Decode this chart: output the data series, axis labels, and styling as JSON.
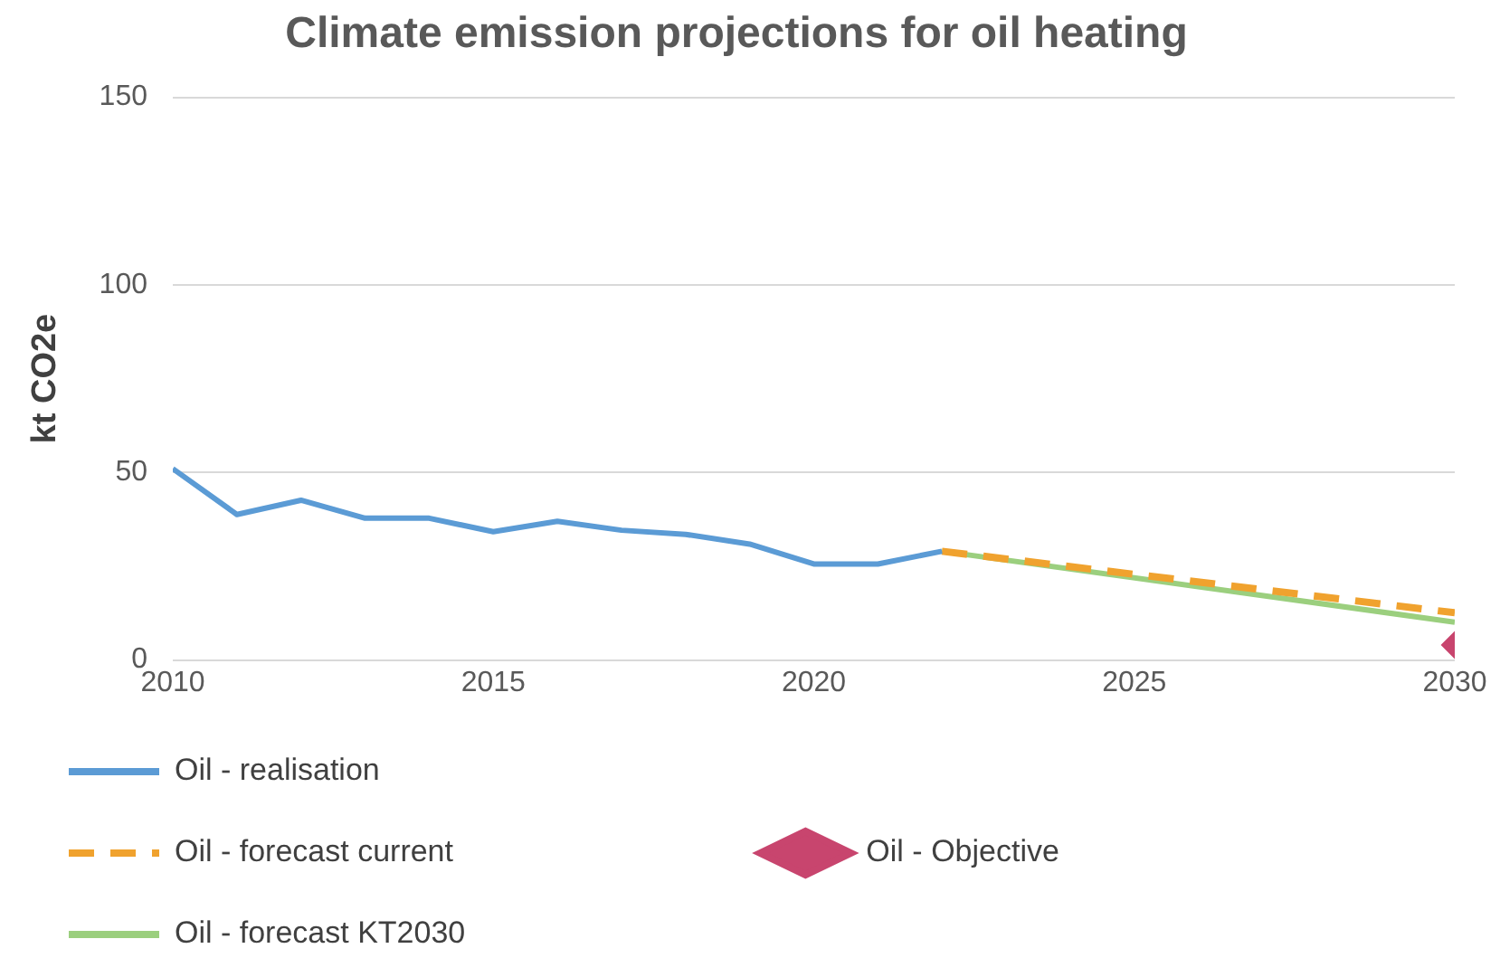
{
  "chart_data": {
    "type": "line",
    "title": "Climate emission projections for oil heating",
    "ylabel": "kt CO2e",
    "xlim": [
      2010,
      2030
    ],
    "xticks": [
      2010,
      2015,
      2020,
      2025,
      2030
    ],
    "ylim": [
      0,
      150
    ],
    "yticks": [
      0,
      50,
      100,
      150
    ],
    "grid": "y",
    "legend": "bottom",
    "series": [
      {
        "name": "Oil - realisation",
        "color": "#5b9bd5",
        "x": [
          2010,
          2011,
          2012,
          2013,
          2014,
          2015,
          2016,
          2017,
          2018,
          2019,
          2020,
          2021,
          2022
        ],
        "values": [
          51,
          38.8,
          42.6,
          37.8,
          37.8,
          34.2,
          37,
          34.6,
          33.5,
          30.9,
          25.6,
          25.6,
          29
        ]
      },
      {
        "name": "Oil - forecast current",
        "color": "#f0a22e",
        "line_style": "dashed",
        "x": [
          2022,
          2030
        ],
        "values": [
          29,
          12.6
        ]
      },
      {
        "name": "Oil - Objective",
        "color": "#c8456e",
        "type": "scatter",
        "marker": "diamond",
        "x": [
          2030
        ],
        "values": [
          4
        ]
      },
      {
        "name": "Oil - forecast KT2030",
        "color": "#9bcf7e",
        "x": [
          2022,
          2030
        ],
        "values": [
          29,
          10.1
        ]
      }
    ]
  }
}
